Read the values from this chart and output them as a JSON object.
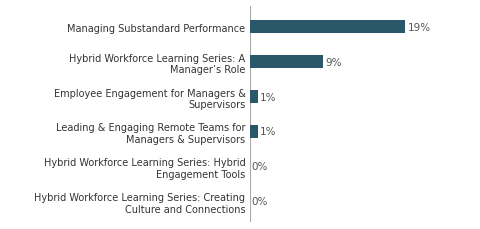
{
  "categories": [
    "Hybrid Workforce Learning Series: Creating\nCulture and Connections",
    "Hybrid Workforce Learning Series: Hybrid\nEngagement Tools",
    "Leading & Engaging Remote Teams for\nManagers & Supervisors",
    "Employee Engagement for Managers &\nSupervisors",
    "Hybrid Workforce Learning Series: A\nManager’s Role",
    "Managing Substandard Performance"
  ],
  "values": [
    0,
    0,
    1,
    1,
    9,
    19
  ],
  "labels": [
    "0%",
    "0%",
    "1%",
    "1%",
    "9%",
    "19%"
  ],
  "bar_color": "#2a5769",
  "background_color": "#ffffff",
  "xlim": [
    0,
    24
  ],
  "bar_height": 0.38,
  "label_fontsize": 7.0,
  "value_fontsize": 7.5,
  "figsize": [
    4.8,
    2.3
  ],
  "dpi": 100
}
